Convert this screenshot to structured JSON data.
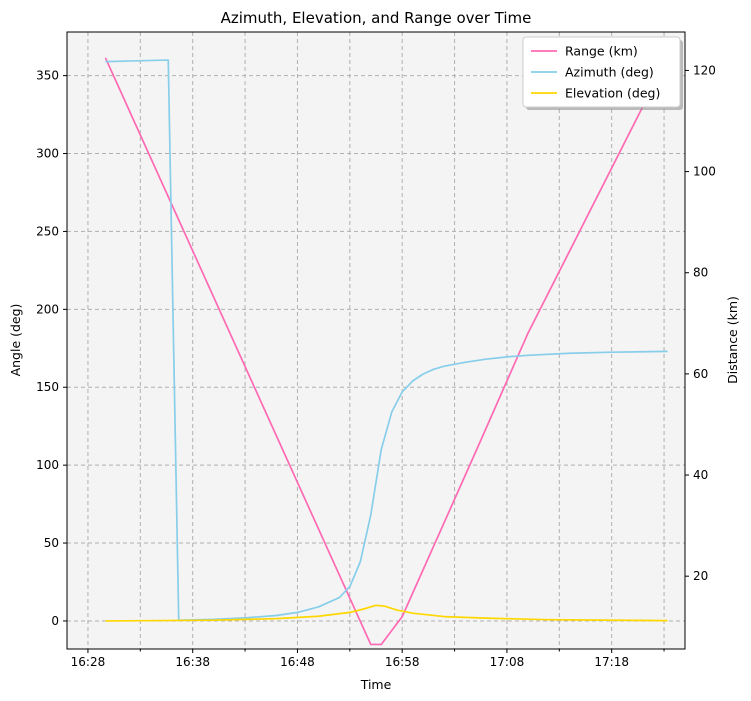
{
  "chart_data": {
    "type": "line",
    "title": "Azimuth, Elevation, and Range over Time",
    "xlabel": "Time",
    "ylabel_left": "Angle (deg)",
    "ylabel_right": "Distance (km)",
    "xlim": [
      "16:26:00",
      "17:25:00"
    ],
    "ylim_left": [
      -18,
      378
    ],
    "ylim_right": [
      5.6,
      127.6
    ],
    "x_ticks": [
      "16:28",
      "16:38",
      "16:48",
      "16:58",
      "17:08",
      "17:18"
    ],
    "x_minor_ticks": [
      "16:33",
      "16:43",
      "16:53",
      "17:03",
      "17:13",
      "17:23"
    ],
    "y_ticks_left": [
      0,
      50,
      100,
      150,
      200,
      250,
      300,
      350
    ],
    "y_ticks_right": [
      20,
      40,
      60,
      80,
      100,
      120
    ],
    "grid": true,
    "legend_position": "top-right",
    "series": [
      {
        "name": "Range (km)",
        "axis": "right",
        "color": "#ff69b4",
        "points": [
          [
            "16:29:40",
            122.5
          ],
          [
            "16:55:00",
            6.5
          ],
          [
            "16:56:00",
            6.5
          ],
          [
            "16:58:00",
            12.0
          ],
          [
            "17:05:00",
            44.5
          ],
          [
            "17:10:00",
            68.0
          ],
          [
            "17:23:20",
            122.5
          ]
        ]
      },
      {
        "name": "Azimuth (deg)",
        "axis": "left",
        "color": "#87ceeb",
        "points": [
          [
            "16:29:40",
            359
          ],
          [
            "16:35:40",
            360
          ],
          [
            "16:36:40",
            0.5
          ],
          [
            "16:40:00",
            1
          ],
          [
            "16:43:00",
            2
          ],
          [
            "16:46:00",
            3.5
          ],
          [
            "16:48:00",
            5.5
          ],
          [
            "16:50:00",
            9
          ],
          [
            "16:52:00",
            15
          ],
          [
            "16:53:00",
            22
          ],
          [
            "16:54:00",
            38
          ],
          [
            "16:55:00",
            68
          ],
          [
            "16:56:00",
            110
          ],
          [
            "16:57:00",
            134
          ],
          [
            "16:58:00",
            147
          ],
          [
            "16:59:00",
            154
          ],
          [
            "17:00:00",
            158.5
          ],
          [
            "17:01:00",
            161.5
          ],
          [
            "17:02:00",
            163.5
          ],
          [
            "17:04:00",
            166
          ],
          [
            "17:06:00",
            168
          ],
          [
            "17:08:00",
            169.5
          ],
          [
            "17:10:00",
            170.5
          ],
          [
            "17:14:00",
            171.8
          ],
          [
            "17:18:00",
            172.5
          ],
          [
            "17:23:20",
            173
          ]
        ]
      },
      {
        "name": "Elevation (deg)",
        "axis": "left",
        "color": "#ffd700",
        "points": [
          [
            "16:29:40",
            0
          ],
          [
            "16:40:00",
            0.5
          ],
          [
            "16:46:00",
            1.5
          ],
          [
            "16:50:00",
            3
          ],
          [
            "16:53:00",
            5.5
          ],
          [
            "16:54:30",
            8
          ],
          [
            "16:55:30",
            10
          ],
          [
            "16:56:20",
            9.5
          ],
          [
            "16:57:30",
            7
          ],
          [
            "16:59:00",
            5
          ],
          [
            "17:02:00",
            2.8
          ],
          [
            "17:06:00",
            1.8
          ],
          [
            "17:12:00",
            0.8
          ],
          [
            "17:23:20",
            0.2
          ]
        ]
      }
    ]
  }
}
